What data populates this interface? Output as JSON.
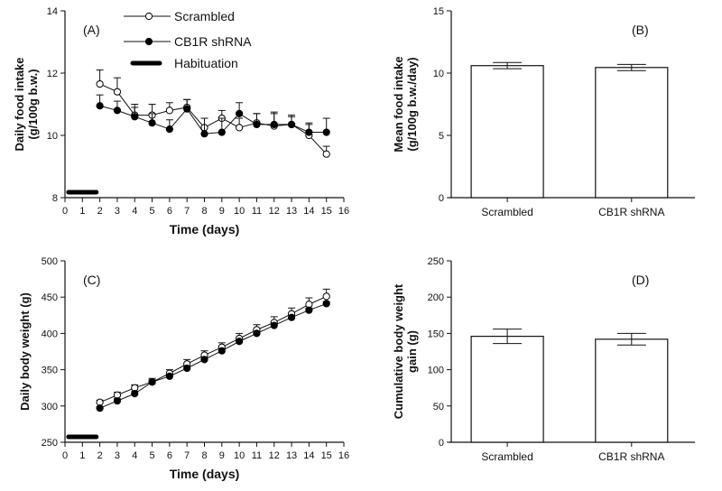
{
  "chart_data": [
    {
      "panel": "(A)",
      "type": "line",
      "xlabel": "Time (days)",
      "ylabel": [
        "Daily food intake",
        "(g/100g b.w.)"
      ],
      "xlim": [
        0,
        16
      ],
      "ylim": [
        8,
        14
      ],
      "xticks": [
        0,
        1,
        2,
        3,
        4,
        5,
        6,
        7,
        8,
        9,
        10,
        11,
        12,
        13,
        14,
        15,
        16
      ],
      "yticks": [
        8,
        10,
        12,
        14
      ],
      "x": [
        2,
        3,
        4,
        5,
        6,
        7,
        8,
        9,
        10,
        11,
        12,
        13,
        14,
        15
      ],
      "series": [
        {
          "name": "Scrambled",
          "marker": "open-circle",
          "values": [
            11.65,
            11.4,
            10.65,
            10.65,
            10.8,
            10.9,
            10.25,
            10.55,
            10.25,
            10.4,
            10.3,
            10.35,
            10.0,
            9.4
          ],
          "err": [
            0.45,
            0.45,
            0.35,
            0.35,
            0.25,
            0.25,
            0.3,
            0.25,
            0.3,
            0.3,
            0.45,
            0.3,
            0.4,
            0.25
          ]
        },
        {
          "name": "CB1R shRNA",
          "marker": "filled-circle",
          "values": [
            10.95,
            10.8,
            10.6,
            10.4,
            10.2,
            10.85,
            10.05,
            10.1,
            10.7,
            10.35,
            10.35,
            10.35,
            10.1,
            10.1
          ],
          "err": [
            0.35,
            0.3,
            0.3,
            0.3,
            0.3,
            0.3,
            0.5,
            0.45,
            0.35,
            0.35,
            0.35,
            0.25,
            0.25,
            0.45
          ]
        }
      ],
      "habituation": {
        "name": "Habituation",
        "from": 0.2,
        "to": 1.8
      },
      "legend": [
        "Scrambled",
        "CB1R shRNA",
        "Habituation"
      ],
      "legend_position": "top-center"
    },
    {
      "panel": "(B)",
      "type": "bar",
      "xlabel": "",
      "ylabel": [
        "Mean food intake",
        "(g/100g b.w./day)"
      ],
      "ylim": [
        0,
        15
      ],
      "yticks": [
        0,
        5,
        10,
        15
      ],
      "categories": [
        "Scrambled",
        "CB1R shRNA"
      ],
      "values": [
        10.6,
        10.45
      ],
      "err": [
        0.25,
        0.25
      ]
    },
    {
      "panel": "(C)",
      "type": "line",
      "xlabel": "Time (days)",
      "ylabel": [
        "Daily body weight (g)"
      ],
      "xlim": [
        0,
        16
      ],
      "ylim": [
        250,
        500
      ],
      "xticks": [
        0,
        1,
        2,
        3,
        4,
        5,
        6,
        7,
        8,
        9,
        10,
        11,
        12,
        13,
        14,
        15,
        16
      ],
      "yticks": [
        250,
        300,
        350,
        400,
        450,
        500
      ],
      "x": [
        2,
        3,
        4,
        5,
        6,
        7,
        8,
        9,
        10,
        11,
        12,
        13,
        14,
        15
      ],
      "series": [
        {
          "name": "Scrambled",
          "marker": "open-circle",
          "values": [
            305,
            315,
            325,
            333,
            345,
            358,
            370,
            381,
            393,
            405,
            415,
            427,
            440,
            451
          ],
          "err": [
            3,
            4,
            4,
            5,
            5,
            6,
            6,
            6,
            7,
            7,
            8,
            8,
            9,
            10
          ]
        },
        {
          "name": "CB1R shRNA",
          "marker": "filled-circle",
          "values": [
            297,
            307,
            317,
            333,
            341,
            352,
            364,
            376,
            389,
            400,
            411,
            422,
            432,
            441
          ],
          "err": [
            2,
            3,
            3,
            3,
            3,
            3,
            3,
            3,
            3,
            3,
            3,
            3,
            3,
            3
          ]
        }
      ],
      "habituation": {
        "name": "Habituation",
        "from": 0.2,
        "to": 1.8
      }
    },
    {
      "panel": "(D)",
      "type": "bar",
      "xlabel": "",
      "ylabel": [
        "Cumulative body weight",
        "gain (g)"
      ],
      "ylim": [
        0,
        250
      ],
      "yticks": [
        0,
        50,
        100,
        150,
        200,
        250
      ],
      "categories": [
        "Scrambled",
        "CB1R shRNA"
      ],
      "values": [
        146,
        142
      ],
      "err": [
        10,
        8
      ]
    }
  ]
}
